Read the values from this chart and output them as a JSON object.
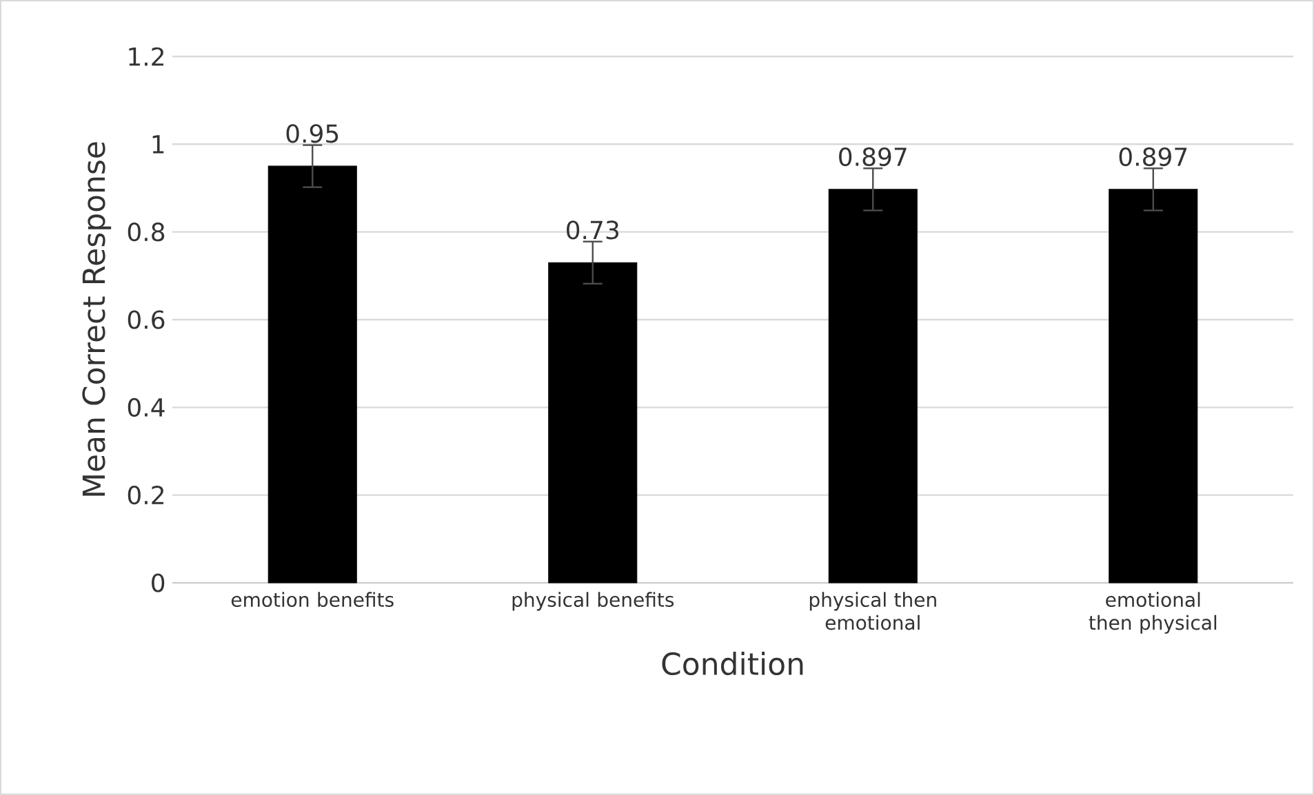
{
  "chart_data": {
    "type": "bar",
    "xlabel": "Condition",
    "ylabel": "Mean Correct Response",
    "categories": [
      "emotion benefits",
      "physical benefits",
      "physical then emotional",
      "emotional then physical"
    ],
    "values": [
      0.95,
      0.73,
      0.897,
      0.897
    ],
    "errors": [
      0.048,
      0.048,
      0.048,
      0.048
    ],
    "color": "#000000",
    "ylim": [
      0,
      1.2
    ],
    "yticks": [
      0,
      0.2,
      0.4,
      0.6,
      0.8,
      1,
      1.2
    ],
    "grid": "y",
    "data_labels": true
  }
}
